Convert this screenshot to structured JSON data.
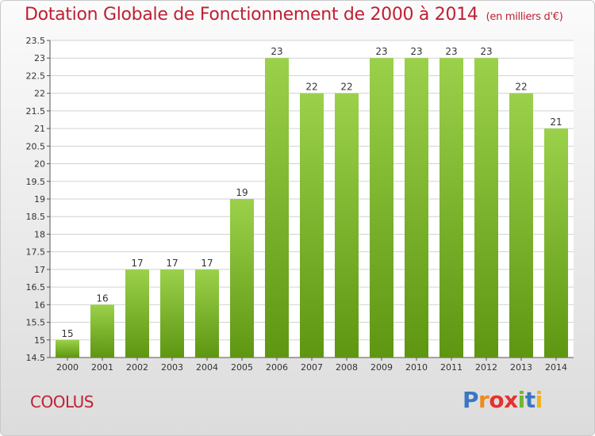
{
  "header": {
    "title": "Dotation Globale de Fonctionnement de 2000 à 2014",
    "subtitle": "(en milliers d'€)"
  },
  "footer": {
    "commune": "COOLUS",
    "logo": [
      "P",
      "r",
      "o",
      "x",
      "i",
      "t",
      "i"
    ]
  },
  "colors": {
    "title": "#bf2033",
    "bar_light": "#9bd14a",
    "bar_dark": "#5e9612",
    "grid": "#d2d2d2"
  },
  "chart_data": {
    "type": "bar",
    "title": "Dotation Globale de Fonctionnement de 2000 à 2014",
    "subtitle": "(en milliers d'€)",
    "xlabel": "",
    "ylabel": "",
    "categories": [
      "2000",
      "2001",
      "2002",
      "2003",
      "2004",
      "2005",
      "2006",
      "2007",
      "2008",
      "2009",
      "2010",
      "2011",
      "2012",
      "2013",
      "2014"
    ],
    "values": [
      15,
      16,
      17,
      17,
      17,
      19,
      23,
      22,
      22,
      23,
      23,
      23,
      23,
      22,
      21
    ],
    "ylim": [
      14.5,
      23.5
    ],
    "yticks": [
      "14.5",
      "15",
      "15.5",
      "16",
      "16.5",
      "17",
      "17.5",
      "18",
      "18.5",
      "19",
      "19.5",
      "20",
      "20.5",
      "21",
      "21.5",
      "22",
      "22.5",
      "23",
      "23.5"
    ],
    "grid": true,
    "legend": "none"
  }
}
